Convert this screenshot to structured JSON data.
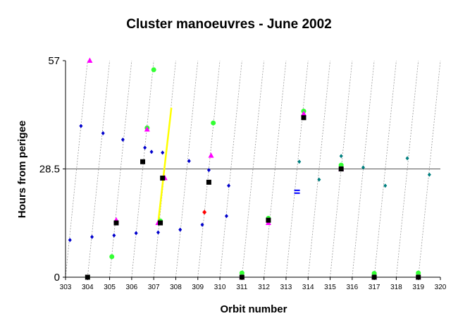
{
  "chart_data": {
    "type": "scatter",
    "title": "Cluster manoeuvres - June 2002",
    "xlabel": "Orbit number",
    "ylabel": "Hours from perigee",
    "xlim": [
      303,
      320
    ],
    "ylim": [
      0,
      57
    ],
    "x_ticks": [
      "303",
      "304",
      "305",
      "306",
      "307",
      "308",
      "309",
      "310",
      "311",
      "312",
      "313",
      "314",
      "315",
      "316",
      "317",
      "318",
      "319",
      "320"
    ],
    "y_ticks": [
      "0",
      "28.5",
      "57"
    ],
    "reference_line_y": 28.5,
    "diagonal_guides": {
      "style": "dotted",
      "color": "#999999",
      "orbit_starts": [
        303,
        304,
        305,
        306,
        307,
        308,
        309,
        310,
        311,
        312,
        313,
        314,
        315,
        316,
        317,
        318,
        319
      ]
    },
    "colors": {
      "navy_diamond": "#0000cc",
      "black_square": "#000000",
      "magenta_triangle": "#ff00ff",
      "green_circle": "#33ff33",
      "teal_diamond": "#008080",
      "red_diamond": "#ff0000",
      "yellow_line": "#ffff00",
      "blue_bar": "#0000ff"
    },
    "series": [
      {
        "marker": "navy_diamond",
        "points": [
          [
            303.2,
            9.8
          ],
          [
            303.7,
            39.8
          ],
          [
            304.2,
            10.6
          ],
          [
            304.7,
            37.9
          ],
          [
            305.2,
            11.0
          ],
          [
            305.6,
            36.2
          ],
          [
            306.2,
            11.6
          ],
          [
            306.6,
            34.1
          ],
          [
            306.9,
            33.0
          ],
          [
            307.2,
            11.8
          ],
          [
            307.4,
            32.8
          ],
          [
            308.2,
            12.5
          ],
          [
            308.6,
            30.6
          ],
          [
            309.2,
            13.8
          ],
          [
            309.5,
            28.2
          ],
          [
            310.3,
            16.1
          ],
          [
            310.4,
            24.1
          ]
        ]
      },
      {
        "marker": "black_square",
        "points": [
          [
            304.0,
            0
          ],
          [
            305.3,
            14.3
          ],
          [
            306.5,
            30.4
          ],
          [
            307.3,
            14.3
          ],
          [
            307.4,
            26.1
          ],
          [
            309.5,
            25.0
          ],
          [
            311.0,
            0
          ],
          [
            312.2,
            15.0
          ],
          [
            313.8,
            42.0
          ],
          [
            315.5,
            28.5
          ],
          [
            317.0,
            0
          ],
          [
            319.0,
            0
          ]
        ]
      },
      {
        "marker": "magenta_triangle",
        "points": [
          [
            304.1,
            57.0
          ],
          [
            305.3,
            15.0
          ],
          [
            306.7,
            38.9
          ],
          [
            307.2,
            14.3
          ],
          [
            307.5,
            26.1
          ],
          [
            309.6,
            32.0
          ],
          [
            311.0,
            0
          ],
          [
            312.2,
            14.3
          ],
          [
            313.8,
            43.0
          ],
          [
            315.5,
            28.5
          ],
          [
            317.0,
            0
          ],
          [
            319.0,
            0
          ]
        ]
      },
      {
        "marker": "green_circle",
        "points": [
          [
            304.0,
            0
          ],
          [
            305.1,
            5.4
          ],
          [
            306.7,
            39.3
          ],
          [
            307.0,
            54.6
          ],
          [
            307.3,
            14.8
          ],
          [
            309.7,
            40.6
          ],
          [
            311.0,
            1.1
          ],
          [
            312.2,
            15.5
          ],
          [
            313.8,
            43.7
          ],
          [
            315.5,
            29.5
          ],
          [
            317.0,
            1.0
          ],
          [
            319.0,
            1.1
          ]
        ]
      },
      {
        "marker": "teal_diamond",
        "points": [
          [
            313.6,
            30.4
          ],
          [
            314.5,
            25.7
          ],
          [
            315.5,
            31.9
          ],
          [
            316.5,
            28.9
          ],
          [
            317.5,
            24.1
          ],
          [
            318.5,
            31.3
          ],
          [
            319.5,
            27.0
          ]
        ]
      },
      {
        "marker": "red_diamond",
        "points": [
          [
            309.3,
            17.1
          ]
        ]
      },
      {
        "marker": "yellow_line",
        "segment": [
          [
            307.2,
            14.3
          ],
          [
            307.8,
            44.6
          ]
        ]
      },
      {
        "marker": "blue_bar",
        "points": [
          [
            313.5,
            22.5
          ]
        ]
      }
    ]
  }
}
